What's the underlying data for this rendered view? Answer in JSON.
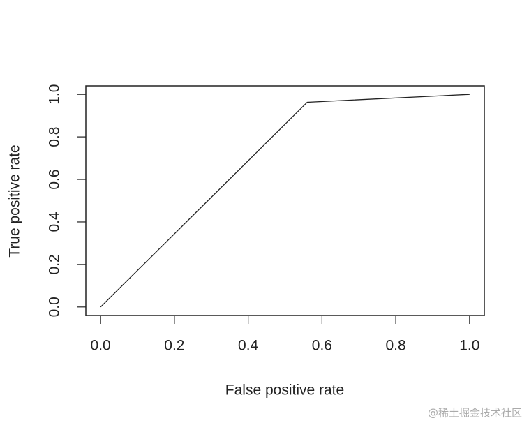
{
  "chart_data": {
    "type": "line",
    "x_label": "False positive rate",
    "y_label": "True positive rate",
    "x": [
      0,
      0.56,
      1
    ],
    "values": [
      0,
      0.963,
      1
    ],
    "color": "#222222",
    "xlim": [
      -0.04,
      1.04
    ],
    "ylim": [
      -0.04,
      1.04
    ],
    "xticks": [
      {
        "value": 0,
        "label": "0.0"
      },
      0.2,
      0.4,
      0.6,
      0.8,
      {
        "value": 1,
        "label": "1.0"
      }
    ],
    "yticks": [
      {
        "value": 0,
        "label": "0.0"
      },
      0.2,
      0.4,
      0.6,
      0.8,
      {
        "value": 1,
        "label": "1.0"
      }
    ]
  },
  "watermark": "@稀土掘金技术社区"
}
